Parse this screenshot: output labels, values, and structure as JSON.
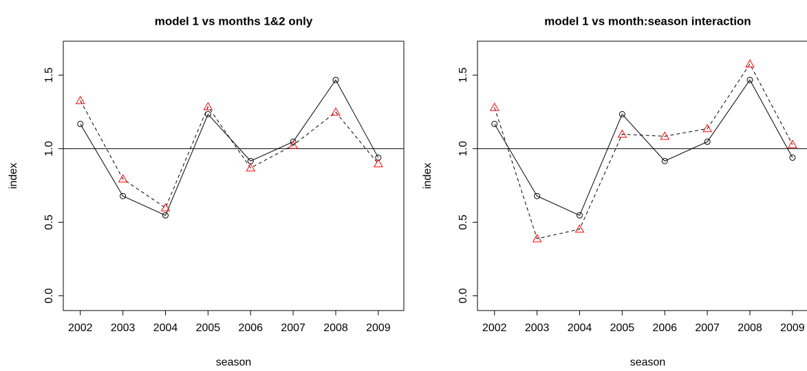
{
  "chart_data": [
    {
      "type": "line",
      "title": "model 1 vs months 1&2 only",
      "xlabel": "season",
      "ylabel": "index",
      "x": [
        2002,
        2003,
        2004,
        2005,
        2006,
        2007,
        2008,
        2009
      ],
      "xlim": [
        2001.6,
        2009.6
      ],
      "xticks": [
        2002,
        2003,
        2004,
        2005,
        2006,
        2007,
        2008,
        2009
      ],
      "ylim": [
        -0.1,
        1.73
      ],
      "yticks": [
        {
          "value": 0,
          "label": "0.0"
        },
        0.5,
        {
          "value": 1,
          "label": "1.0"
        },
        1.5
      ],
      "hline": 1,
      "series": [
        {
          "color": "#000000",
          "marker": "circle",
          "line_style": "solid",
          "values": [
            1.168,
            0.678,
            0.547,
            1.234,
            0.916,
            1.047,
            1.467,
            0.939
          ]
        },
        {
          "color": "#ff0000",
          "marker": "triangle",
          "line_style": "dashed",
          "values": [
            1.327,
            0.794,
            0.598,
            1.285,
            0.869,
            1.023,
            1.248,
            0.897
          ]
        }
      ]
    },
    {
      "type": "line",
      "title": "model 1 vs month:season interaction",
      "xlabel": "season",
      "ylabel": "index",
      "x": [
        2002,
        2003,
        2004,
        2005,
        2006,
        2007,
        2008,
        2009
      ],
      "xlim": [
        2001.6,
        2009.6
      ],
      "xticks": [
        2002,
        2003,
        2004,
        2005,
        2006,
        2007,
        2008,
        2009
      ],
      "ylim": [
        -0.1,
        1.73
      ],
      "yticks": [
        {
          "value": 0,
          "label": "0.0"
        },
        0.5,
        {
          "value": 1,
          "label": "1.0"
        },
        1.5
      ],
      "hline": 1,
      "series": [
        {
          "color": "#000000",
          "marker": "circle",
          "line_style": "solid",
          "values": [
            1.168,
            0.678,
            0.547,
            1.234,
            0.916,
            1.047,
            1.467,
            0.939
          ]
        },
        {
          "color": "#ff0000",
          "marker": "triangle",
          "line_style": "dashed",
          "values": [
            1.28,
            0.388,
            0.453,
            1.098,
            1.084,
            1.136,
            1.575,
            1.028
          ]
        }
      ]
    }
  ]
}
